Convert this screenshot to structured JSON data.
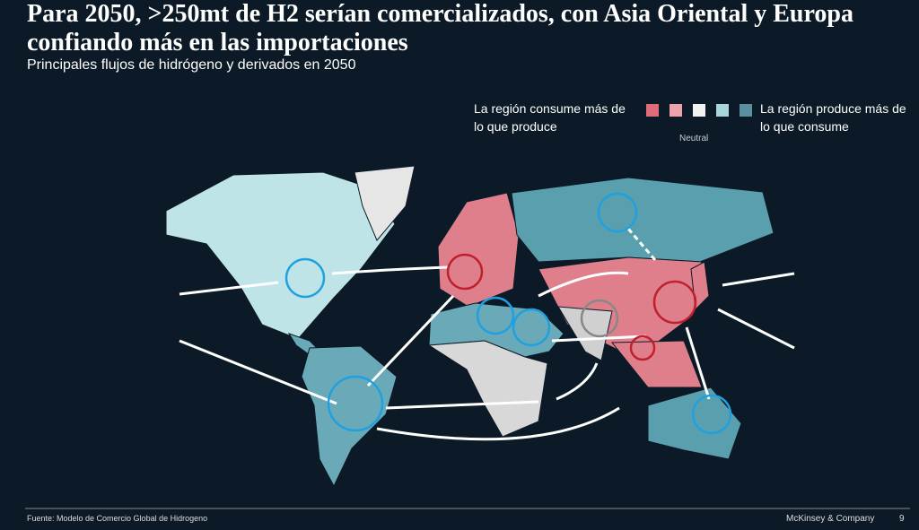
{
  "header": {
    "title": "Para 2050, >250mt de H2 serían comercializados, con Asia Oriental y Europa confiando más en las importaciones",
    "subtitle": "Principales flujos de hidrógeno y derivados en 2050"
  },
  "legend": {
    "consumes": "La región consume más de lo que produce",
    "neutral": "Neutral",
    "produces": "La región produce más de lo que consume"
  },
  "footer": {
    "source": "Fuente: Modelo de Comercio Global de Hidrogeno",
    "brand": "McKinsey & Company",
    "page": "9"
  }
}
